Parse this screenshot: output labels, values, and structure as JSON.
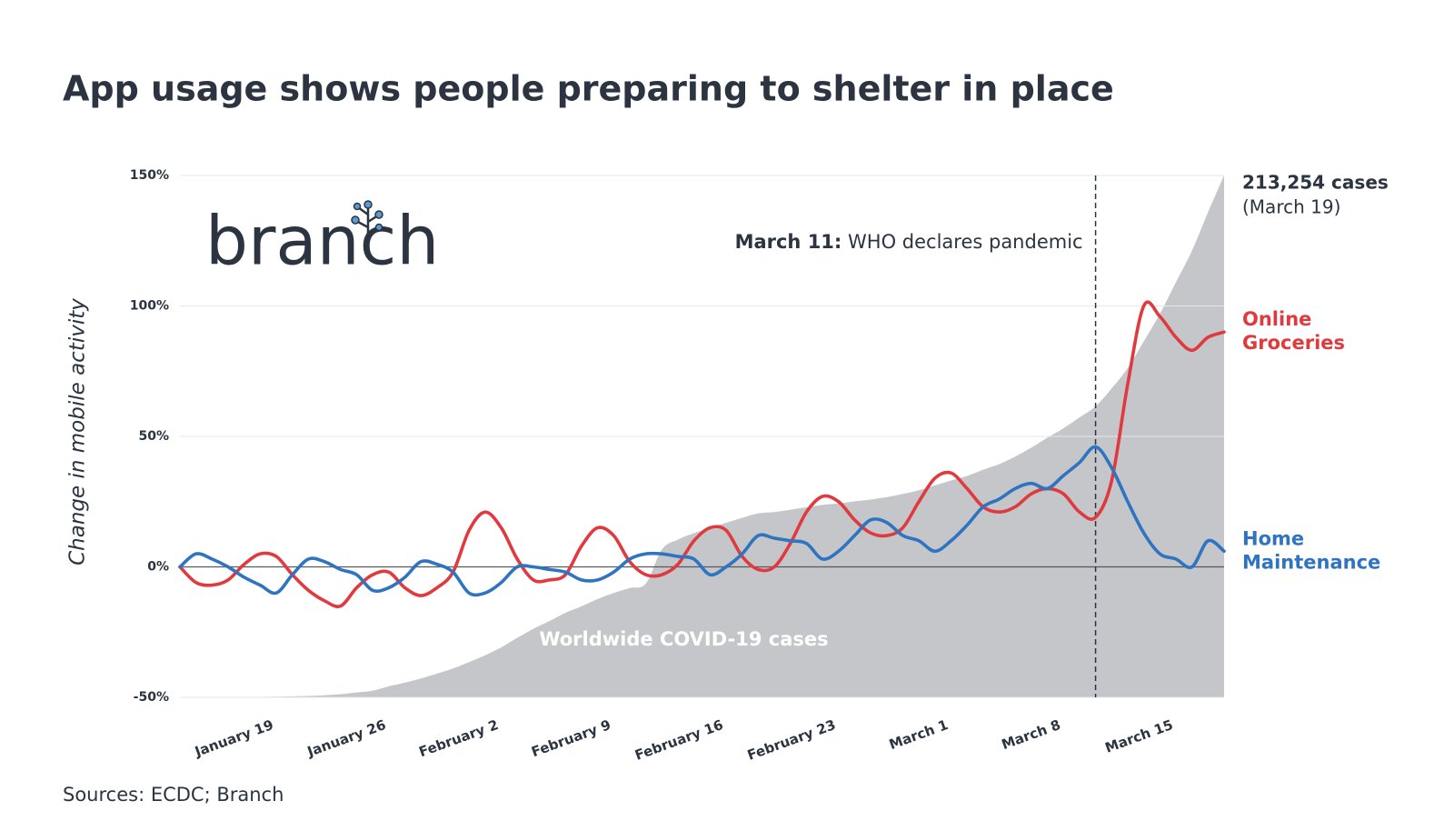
{
  "chart_data": {
    "type": "line",
    "title": "App usage shows people preparing to shelter in place",
    "y_label": "Change in mobile activity",
    "source": "Sources: ECDC; Branch",
    "logo": "branch",
    "categories": [
      null,
      null,
      null,
      null,
      null,
      "January 19",
      null,
      null,
      null,
      null,
      null,
      null,
      "January 26",
      null,
      null,
      null,
      null,
      null,
      null,
      "February 2",
      null,
      null,
      null,
      null,
      null,
      null,
      "February 9",
      null,
      null,
      null,
      null,
      null,
      null,
      "February 16",
      null,
      null,
      null,
      null,
      null,
      null,
      "February 23",
      null,
      null,
      null,
      null,
      null,
      null,
      "March 1",
      null,
      null,
      null,
      null,
      null,
      null,
      "March 8",
      null,
      null,
      null,
      null,
      null,
      null,
      "March 15",
      null,
      null,
      null,
      null
    ],
    "ylim": [
      -50,
      150
    ],
    "yticks": [
      {
        "value": -50,
        "label": "-50%"
      },
      {
        "value": 0,
        "label": "0%"
      },
      {
        "value": 50,
        "label": "50%"
      },
      {
        "value": 100,
        "label": "100%"
      },
      {
        "value": 150,
        "label": "150%"
      }
    ],
    "grid": true,
    "y2lim": [
      0,
      213254
    ],
    "area": {
      "name": "Worldwide COVID-19 cases",
      "color": "#c4c6c9",
      "axis": "y2",
      "end_label": "213,254 cases",
      "end_note": "(March 19)",
      "values": [
        41,
        45,
        50,
        62,
        121,
        198,
        291,
        440,
        571,
        830,
        1287,
        1975,
        2744,
        4515,
        5974,
        7711,
        9692,
        11791,
        14380,
        17205,
        20438,
        24324,
        28018,
        31161,
        34546,
        37198,
        40171,
        42638,
        44653,
        46472,
        60363,
        64447,
        67100,
        69197,
        71329,
        73332,
        75184,
        75700,
        76677,
        77673,
        78651,
        79205,
        80087,
        80828,
        81820,
        83112,
        84615,
        86604,
        88585,
        90443,
        93016,
        95314,
        98425,
        102050,
        106099,
        109991,
        114381,
        118948,
        126214,
        134576,
        145483,
        156653,
        169593,
        182490,
        198238,
        213254
      ]
    },
    "series": [
      {
        "name": "Online Groceries",
        "color": "#e03a3e",
        "values": [
          0,
          -6,
          -7,
          -5,
          1,
          5,
          4,
          -3,
          -9,
          -13,
          -15,
          -8,
          -3,
          -2,
          -8,
          -11,
          -8,
          -2,
          14,
          21,
          15,
          3,
          -5,
          -5,
          -3,
          8,
          15,
          12,
          2,
          -3,
          -3,
          1,
          10,
          15,
          14,
          4,
          -1,
          0,
          9,
          21,
          27,
          25,
          18,
          13,
          12,
          15,
          25,
          34,
          36,
          30,
          23,
          21,
          23,
          28,
          30,
          28,
          21,
          19,
          33,
          70,
          100,
          96,
          88,
          83,
          88,
          90
        ]
      },
      {
        "name": "Home Maintenance",
        "color": "#2f74c0",
        "values": [
          0,
          5,
          3,
          0,
          -4,
          -7,
          -10,
          -3,
          3,
          2,
          -1,
          -3,
          -9,
          -8,
          -4,
          2,
          1,
          -2,
          -10,
          -10,
          -6,
          0,
          0,
          -1,
          -2,
          -5,
          -5,
          -2,
          3,
          5,
          5,
          4,
          3,
          -3,
          0,
          5,
          12,
          11,
          10,
          9,
          3,
          6,
          12,
          18,
          17,
          12,
          10,
          6,
          10,
          16,
          23,
          26,
          30,
          32,
          30,
          35,
          40,
          46,
          38,
          25,
          13,
          5,
          3,
          0,
          10,
          6
        ]
      }
    ],
    "annotation": {
      "label": "March 11:",
      "text": "WHO declares pandemic"
    }
  }
}
